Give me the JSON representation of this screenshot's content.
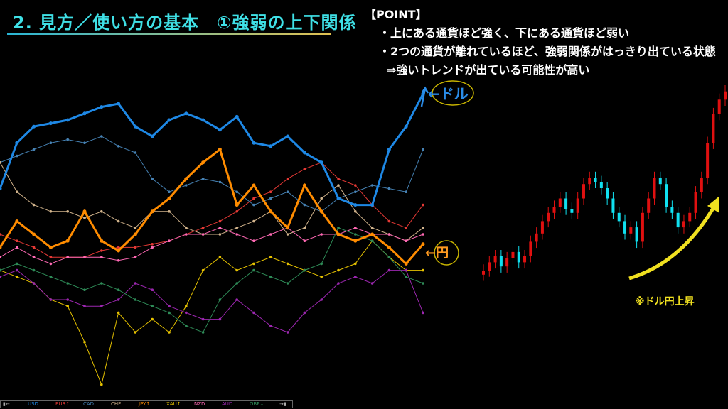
{
  "slide": {
    "title": "2. 見方／使い方の基本　①強弱の上下関係",
    "point_heading": "【POINT】",
    "point_bullets": [
      "・上にある通貨ほど強く、下にある通貨ほど弱い",
      "・2つの通貨が離れているほど、強弱関係がはっきり出ている状態"
    ],
    "point_conclusion": "⇒強いトレンドが出ている可能性が高い",
    "annotations": {
      "usd_label": "←ドル",
      "jpy_label": "←円",
      "usdjpy_note": "※ドル円上昇"
    },
    "colors": {
      "title": "#3fe0e6",
      "note": "#f0e020",
      "candle_up": "#e01010",
      "candle_down": "#10e0f0"
    }
  },
  "legend": [
    {
      "label": "USD",
      "color": "#1e88e5"
    },
    {
      "label": "EUR↑",
      "color": "#e53935"
    },
    {
      "label": "CAD",
      "color": "#4682b4"
    },
    {
      "label": "CHF",
      "color": "#d2b48c"
    },
    {
      "label": "JPY↑",
      "color": "#ff8c00"
    },
    {
      "label": "XAU↑",
      "color": "#e6c200"
    },
    {
      "label": "NZD",
      "color": "#ff69b4"
    },
    {
      "label": "AUD",
      "color": "#9c27b0"
    },
    {
      "label": "GBP↓",
      "color": "#2e8b57"
    }
  ],
  "chart_data": [
    {
      "type": "line",
      "ylim": [
        0,
        100
      ],
      "grid": false,
      "legend": "bottom",
      "series": [
        {
          "name": "USD",
          "color": "#1e88e5",
          "bold": true,
          "values": [
            64,
            78,
            83,
            84,
            85,
            87,
            89,
            90,
            83,
            80,
            85,
            87,
            85,
            82,
            86,
            78,
            77,
            80,
            75,
            72,
            61,
            59,
            59,
            76,
            83,
            93
          ]
        },
        {
          "name": "EUR↑",
          "color": "#e53935",
          "values": [
            50,
            48,
            46,
            43,
            43,
            43,
            45,
            46,
            46,
            47,
            48,
            50,
            52,
            54,
            57,
            61,
            63,
            67,
            70,
            72,
            67,
            65,
            59,
            54,
            52,
            59
          ]
        },
        {
          "name": "CAD",
          "color": "#4682b4",
          "values": [
            72,
            74,
            76,
            78,
            79,
            78,
            80,
            77,
            75,
            67,
            63,
            65,
            67,
            66,
            63,
            59,
            61,
            63,
            59,
            57,
            61,
            63,
            65,
            64,
            63,
            76
          ]
        },
        {
          "name": "CHF",
          "color": "#d2b48c",
          "values": [
            72,
            63,
            59,
            57,
            57,
            55,
            57,
            54,
            52,
            57,
            57,
            52,
            50,
            50,
            52,
            54,
            57,
            50,
            52,
            61,
            65,
            57,
            52,
            50,
            48,
            52
          ]
        },
        {
          "name": "JPY↑",
          "color": "#ff8c00",
          "bold": true,
          "values": [
            46,
            54,
            50,
            46,
            48,
            57,
            48,
            45,
            50,
            57,
            61,
            67,
            72,
            76,
            59,
            65,
            57,
            52,
            65,
            57,
            50,
            48,
            50,
            46,
            41,
            47
          ]
        },
        {
          "name": "XAU↑",
          "color": "#e6c200",
          "values": [
            39,
            37,
            35,
            30,
            28,
            17,
            4,
            26,
            20,
            24,
            20,
            28,
            39,
            43,
            39,
            41,
            43,
            41,
            39,
            37,
            39,
            41,
            48,
            43,
            39,
            39
          ]
        },
        {
          "name": "NZD",
          "color": "#ff69b4",
          "values": [
            43,
            46,
            43,
            41,
            43,
            43,
            43,
            42,
            43,
            46,
            48,
            50,
            50,
            52,
            50,
            48,
            50,
            52,
            48,
            50,
            50,
            52,
            50,
            50,
            48,
            50
          ]
        },
        {
          "name": "AUD",
          "color": "#9c27b0",
          "values": [
            37,
            39,
            35,
            30,
            30,
            28,
            28,
            30,
            35,
            33,
            28,
            26,
            24,
            24,
            30,
            26,
            22,
            20,
            26,
            30,
            35,
            37,
            35,
            39,
            39,
            26
          ]
        },
        {
          "name": "GBP↓",
          "color": "#2e8b57",
          "values": [
            39,
            41,
            39,
            37,
            35,
            33,
            35,
            33,
            30,
            28,
            26,
            22,
            20,
            30,
            35,
            39,
            37,
            35,
            39,
            41,
            52,
            50,
            48,
            43,
            37,
            35
          ]
        }
      ]
    },
    {
      "type": "candlestick",
      "ylim": [
        0,
        100
      ],
      "ohlc": [
        [
          8,
          13,
          5,
          10
        ],
        [
          10,
          17,
          7,
          14
        ],
        [
          14,
          20,
          11,
          17
        ],
        [
          17,
          20,
          9,
          12
        ],
        [
          12,
          19,
          9,
          16
        ],
        [
          16,
          22,
          13,
          19
        ],
        [
          19,
          22,
          11,
          14
        ],
        [
          14,
          20,
          11,
          17
        ],
        [
          17,
          27,
          14,
          24
        ],
        [
          24,
          31,
          21,
          28
        ],
        [
          28,
          37,
          25,
          34
        ],
        [
          34,
          41,
          31,
          38
        ],
        [
          38,
          44,
          35,
          41
        ],
        [
          41,
          48,
          38,
          45
        ],
        [
          45,
          48,
          37,
          40
        ],
        [
          40,
          43,
          35,
          38
        ],
        [
          38,
          48,
          35,
          45
        ],
        [
          45,
          55,
          42,
          52
        ],
        [
          52,
          58,
          49,
          55
        ],
        [
          55,
          58,
          50,
          53
        ],
        [
          53,
          56,
          47,
          50
        ],
        [
          50,
          53,
          42,
          45
        ],
        [
          45,
          48,
          35,
          38
        ],
        [
          38,
          41,
          31,
          34
        ],
        [
          34,
          37,
          25,
          28
        ],
        [
          28,
          34,
          25,
          31
        ],
        [
          31,
          34,
          21,
          24
        ],
        [
          24,
          41,
          21,
          38
        ],
        [
          38,
          48,
          35,
          45
        ],
        [
          45,
          58,
          42,
          55
        ],
        [
          55,
          58,
          49,
          52
        ],
        [
          52,
          55,
          38,
          41
        ],
        [
          41,
          44,
          35,
          38
        ],
        [
          38,
          41,
          28,
          31
        ],
        [
          31,
          37,
          28,
          34
        ],
        [
          34,
          41,
          31,
          38
        ],
        [
          38,
          51,
          35,
          48
        ],
        [
          48,
          58,
          45,
          55
        ],
        [
          55,
          75,
          52,
          72
        ],
        [
          72,
          89,
          69,
          86
        ],
        [
          86,
          96,
          83,
          93
        ],
        [
          93,
          100,
          90,
          97
        ]
      ]
    }
  ]
}
